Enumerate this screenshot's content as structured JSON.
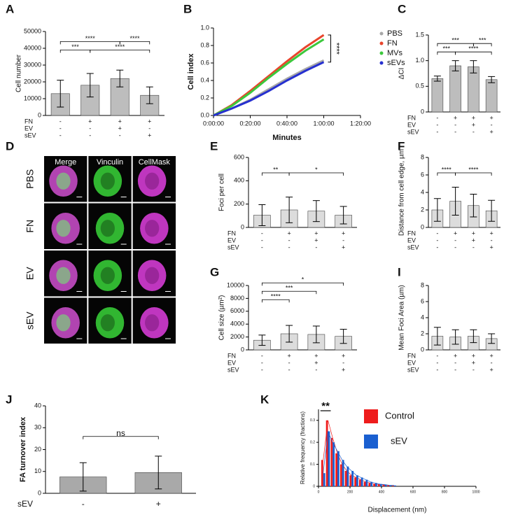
{
  "chart_data": [
    {
      "type": "bar",
      "panel": "A",
      "ylabel": "Cell number",
      "ylim": [
        0,
        50000
      ],
      "yticks": [
        0,
        10000,
        20000,
        30000,
        40000,
        50000
      ],
      "values": [
        13000,
        18000,
        22000,
        12000
      ],
      "errors": [
        8000,
        7000,
        5000,
        5000
      ],
      "color": "#bdbdbd",
      "condition_rows": [
        {
          "name": "FN",
          "signs": [
            "-",
            "+",
            "+",
            "+"
          ]
        },
        {
          "name": "EV",
          "signs": [
            "-",
            "-",
            "+",
            "-"
          ]
        },
        {
          "name": "sEV",
          "signs": [
            "-",
            "-",
            "-",
            "+"
          ]
        }
      ],
      "annotations": [
        {
          "label": "***",
          "from": 0,
          "to": 1
        },
        {
          "label": "****",
          "from": 1,
          "to": 3
        },
        {
          "label": "****",
          "from": 0,
          "to": 2
        },
        {
          "label": "****",
          "from": 2,
          "to": 3
        }
      ]
    },
    {
      "type": "line",
      "panel": "B",
      "ylabel": "Cell index",
      "xlabel": "Minutes",
      "x": [
        0,
        10,
        20,
        30,
        40,
        50,
        60
      ],
      "xlim": [
        0,
        80
      ],
      "xticks": [
        {
          "value": 0,
          "label": "0:00:00"
        },
        {
          "value": 20,
          "label": "0:20:00"
        },
        {
          "value": 40,
          "label": "0:40:00"
        },
        {
          "value": 60,
          "label": "1:00:00"
        },
        {
          "value": 80,
          "label": "1:20:00"
        }
      ],
      "ylim": [
        0,
        1.0
      ],
      "yticks": [
        {
          "value": 0,
          "label": "0.0"
        },
        {
          "value": 0.2,
          "label": "0.2"
        },
        {
          "value": 0.4,
          "label": "0.4"
        },
        {
          "value": 0.6,
          "label": "0.6"
        },
        {
          "value": 0.8,
          "label": "0.8"
        },
        {
          "value": 1.0,
          "label": "1.0"
        }
      ],
      "series": [
        {
          "name": "PBS",
          "color": "#a8a8a8",
          "values": [
            0,
            0.08,
            0.18,
            0.3,
            0.42,
            0.53,
            0.63
          ]
        },
        {
          "name": "FN",
          "color": "#e8452c",
          "values": [
            0,
            0.12,
            0.28,
            0.45,
            0.62,
            0.78,
            0.92
          ]
        },
        {
          "name": "MVs",
          "color": "#3cc83c",
          "values": [
            0,
            0.11,
            0.26,
            0.43,
            0.59,
            0.74,
            0.87
          ]
        },
        {
          "name": "sEVs",
          "color": "#2630d0",
          "values": [
            0,
            0.08,
            0.17,
            0.28,
            0.4,
            0.51,
            0.61
          ]
        }
      ],
      "annotation": "****"
    },
    {
      "type": "bar",
      "panel": "C",
      "ylabel": "ΔCI",
      "ylim": [
        0,
        1.5
      ],
      "yticks": [
        0,
        {
          "value": 0.5,
          "label": "0.5"
        },
        {
          "value": 1.0,
          "label": "1.0"
        },
        {
          "value": 1.5,
          "label": "1.5"
        }
      ],
      "values": [
        0.65,
        0.9,
        0.88,
        0.63
      ],
      "errors": [
        0.05,
        0.1,
        0.12,
        0.06
      ],
      "color": "#bdbdbd",
      "condition_rows": [
        {
          "name": "FN",
          "signs": [
            "-",
            "+",
            "+",
            "+"
          ]
        },
        {
          "name": "EV",
          "signs": [
            "-",
            "-",
            "+",
            "-"
          ]
        },
        {
          "name": "sEV",
          "signs": [
            "-",
            "-",
            "-",
            "+"
          ]
        }
      ],
      "annotations": [
        {
          "label": "***",
          "from": 0,
          "to": 1
        },
        {
          "label": "****",
          "from": 1,
          "to": 3
        },
        {
          "label": "***",
          "from": 0,
          "to": 2
        },
        {
          "label": "***",
          "from": 2,
          "to": 3
        }
      ]
    },
    {
      "type": "image_grid",
      "panel": "D",
      "columns": [
        "Merge",
        "Vinculin",
        "CellMask"
      ],
      "rows": [
        "PBS",
        "FN",
        "EV",
        "sEV"
      ]
    },
    {
      "type": "bar",
      "panel": "E",
      "ylabel": "Foci per cell",
      "ylim": [
        0,
        600
      ],
      "yticks": [
        0,
        200,
        400,
        600
      ],
      "values": [
        105,
        150,
        140,
        105
      ],
      "errors": [
        90,
        110,
        90,
        75
      ],
      "color": "#dcdcdc",
      "condition_rows": [
        {
          "name": "FN",
          "signs": [
            "-",
            "+",
            "+",
            "+"
          ]
        },
        {
          "name": "EV",
          "signs": [
            "-",
            "-",
            "+",
            "-"
          ]
        },
        {
          "name": "sEV",
          "signs": [
            "-",
            "-",
            "-",
            "+"
          ]
        }
      ],
      "annotations": [
        {
          "label": "**",
          "from": 0,
          "to": 1
        },
        {
          "label": "*",
          "from": 1,
          "to": 3
        }
      ]
    },
    {
      "type": "bar",
      "panel": "F",
      "ylabel": "Distance from cell edge, µm",
      "ylim": [
        0,
        8
      ],
      "yticks": [
        0,
        2,
        4,
        6,
        8
      ],
      "values": [
        2,
        3,
        2.5,
        1.9
      ],
      "errors": [
        1.3,
        1.6,
        1.3,
        1.2
      ],
      "color": "#dcdcdc",
      "condition_rows": [
        {
          "name": "FN",
          "signs": [
            "-",
            "+",
            "+",
            "+"
          ]
        },
        {
          "name": "EV",
          "signs": [
            "-",
            "-",
            "+",
            "-"
          ]
        },
        {
          "name": "sEV",
          "signs": [
            "-",
            "-",
            "-",
            "+"
          ]
        }
      ],
      "annotations": [
        {
          "label": "****",
          "from": 0,
          "to": 1
        },
        {
          "label": "****",
          "from": 1,
          "to": 3
        }
      ]
    },
    {
      "type": "bar",
      "panel": "G",
      "ylabel": "Cell size (µm²)",
      "ylim": [
        0,
        10000
      ],
      "yticks": [
        0,
        2000,
        4000,
        6000,
        8000,
        10000
      ],
      "values": [
        1500,
        2500,
        2400,
        2100
      ],
      "errors": [
        800,
        1300,
        1300,
        1100
      ],
      "color": "#dcdcdc",
      "condition_rows": [
        {
          "name": "FN",
          "signs": [
            "-",
            "+",
            "+",
            "+"
          ]
        },
        {
          "name": "EV",
          "signs": [
            "-",
            "-",
            "+",
            "-"
          ]
        },
        {
          "name": "sEV",
          "signs": [
            "-",
            "-",
            "-",
            "+"
          ]
        }
      ],
      "annotations": [
        {
          "label": "****",
          "from": 0,
          "to": 1
        },
        {
          "label": "***",
          "from": 0,
          "to": 2
        },
        {
          "label": "*",
          "from": 0,
          "to": 3
        }
      ]
    },
    {
      "type": "bar",
      "panel": "I",
      "ylabel": "Mean Foci Area (µm)",
      "ylim": [
        0,
        8
      ],
      "yticks": [
        0,
        2,
        4,
        6,
        8
      ],
      "values": [
        1.7,
        1.6,
        1.7,
        1.4
      ],
      "errors": [
        1.1,
        0.9,
        0.8,
        0.6
      ],
      "color": "#dcdcdc",
      "condition_rows": [
        {
          "name": "FN",
          "signs": [
            "-",
            "+",
            "+",
            "+"
          ]
        },
        {
          "name": "EV",
          "signs": [
            "-",
            "-",
            "+",
            "-"
          ]
        },
        {
          "name": "sEV",
          "signs": [
            "-",
            "-",
            "-",
            "+"
          ]
        }
      ],
      "annotations": []
    },
    {
      "type": "bar",
      "panel": "J",
      "ylabel": "FA turnover index",
      "ylim": [
        0,
        40
      ],
      "yticks": [
        0,
        10,
        20,
        30,
        40
      ],
      "values": [
        7.5,
        9.5
      ],
      "errors": [
        6.5,
        7.5
      ],
      "color": "#a9a9a9",
      "condition_rows": [
        {
          "name": "sEV",
          "signs": [
            "-",
            "+"
          ]
        }
      ],
      "annotations": [
        {
          "label": "ns",
          "from": 0,
          "to": 1
        }
      ]
    },
    {
      "type": "grouped_histogram",
      "panel": "K",
      "ylabel": "Relative frequency (fractions)",
      "xlabel": "Displacement (nm)",
      "x": [
        30,
        60,
        90,
        120,
        150,
        180,
        210,
        240,
        270,
        300,
        330,
        360,
        390,
        420,
        450,
        480
      ],
      "xlim": [
        0,
        1000
      ],
      "xticks": [
        0,
        200,
        400,
        600,
        800,
        1000
      ],
      "ylim": [
        0,
        0.35
      ],
      "yticks": [
        0,
        0.1,
        0.2,
        0.3
      ],
      "series": [
        {
          "name": "Control",
          "color": "#ee1c1c",
          "values": [
            0.12,
            0.3,
            0.22,
            0.15,
            0.1,
            0.07,
            0.05,
            0.04,
            0.03,
            0.02,
            0.015,
            0.01,
            0.008,
            0.006,
            0.004,
            0.003
          ]
        },
        {
          "name": "sEV",
          "color": "#1a5fd0",
          "values": [
            0.06,
            0.25,
            0.2,
            0.16,
            0.12,
            0.09,
            0.07,
            0.05,
            0.04,
            0.03,
            0.02,
            0.015,
            0.01,
            0.008,
            0.005,
            0.004
          ]
        }
      ],
      "annotations": [
        {
          "label": "**",
          "from": 0,
          "to": 1
        }
      ]
    }
  ]
}
